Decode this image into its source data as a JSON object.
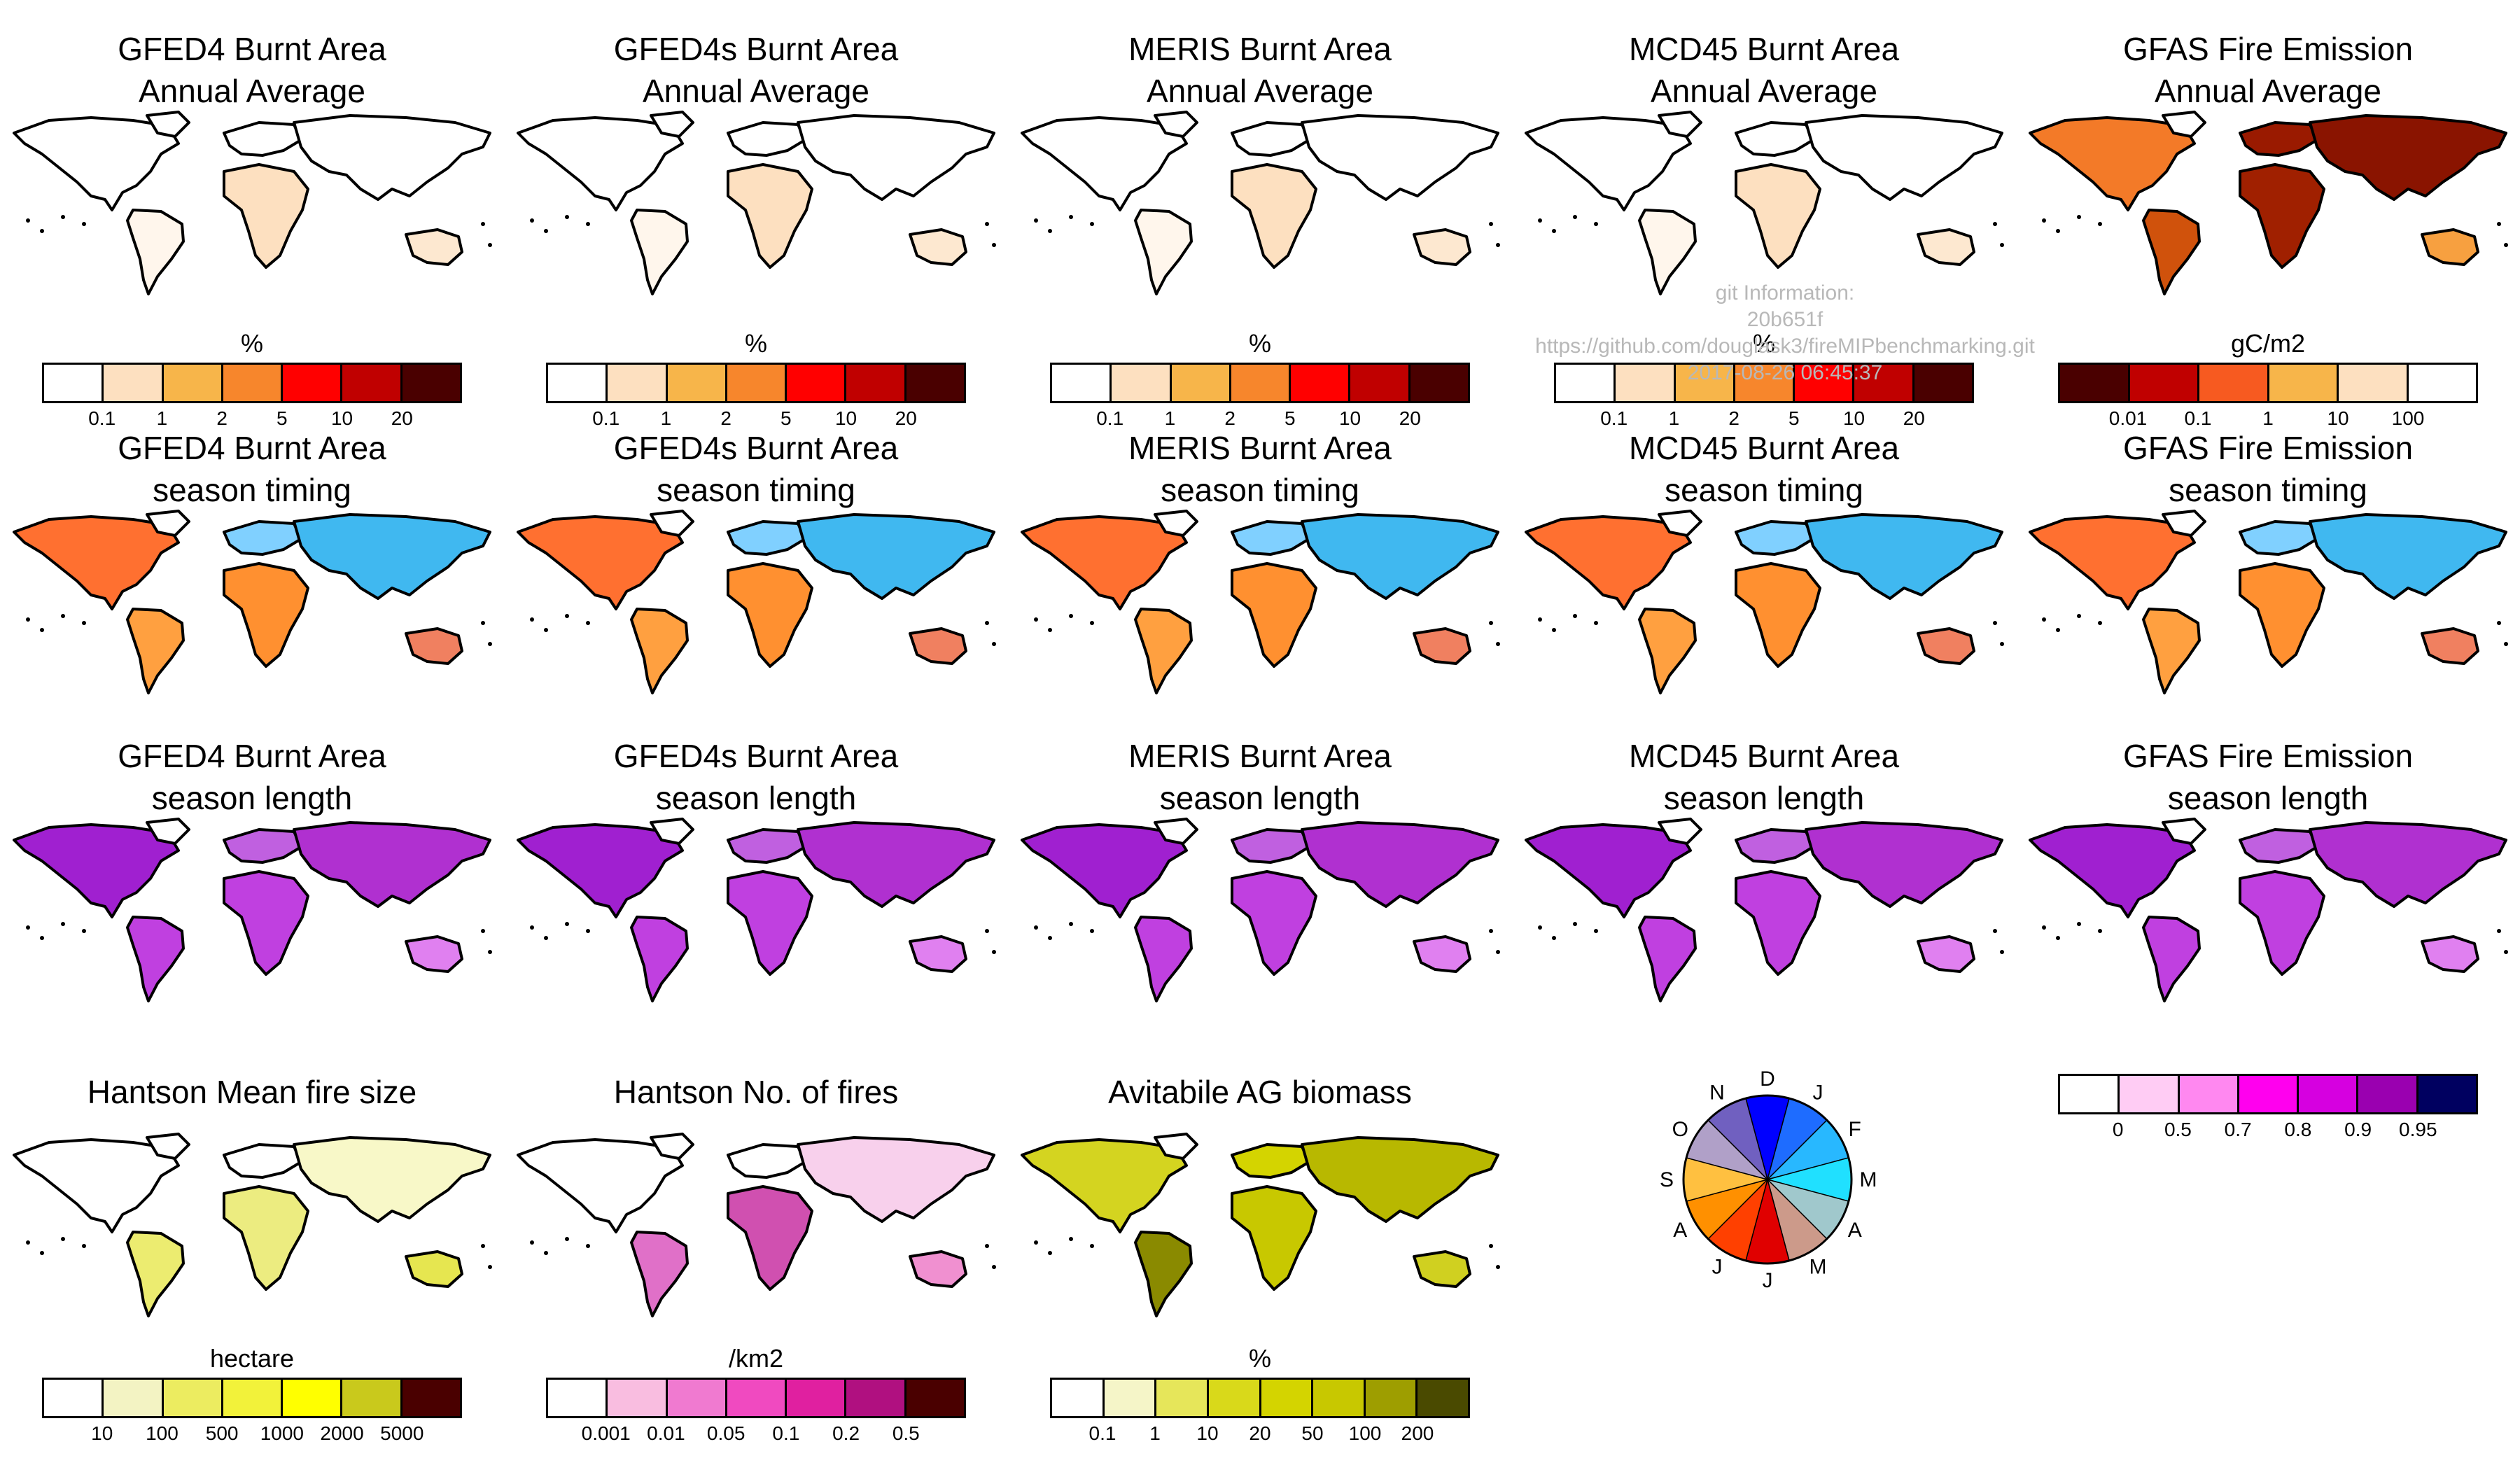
{
  "rows": [
    {
      "panels": [
        {
          "title_line1": "GFED4  Burnt Area",
          "title_line2": "Annual Average",
          "map": "land-light"
        },
        {
          "title_line1": "GFED4s Burnt Area",
          "title_line2": "Annual Average",
          "map": "land-light"
        },
        {
          "title_line1": "MERIS  Burnt Area",
          "title_line2": "Annual Average",
          "map": "land-light"
        },
        {
          "title_line1": "MCD45  Burnt Area",
          "title_line2": "Annual Average",
          "map": "land-light"
        },
        {
          "title_line1": "GFAS Fire Emission",
          "title_line2": "Annual Average",
          "map": "emission"
        }
      ],
      "colorbars": [
        {
          "title": "%",
          "colors": [
            "#ffffff",
            "#fde0c0",
            "#f7b54a",
            "#f7862c",
            "#ff0000",
            "#c00000",
            "#4a0000"
          ],
          "ticks": [
            "0.1",
            "1",
            "2",
            "5",
            "10",
            "20"
          ]
        },
        {
          "title": "%",
          "colors": [
            "#ffffff",
            "#fde0c0",
            "#f7b54a",
            "#f7862c",
            "#ff0000",
            "#c00000",
            "#4a0000"
          ],
          "ticks": [
            "0.1",
            "1",
            "2",
            "5",
            "10",
            "20"
          ]
        },
        {
          "title": "%",
          "colors": [
            "#ffffff",
            "#fde0c0",
            "#f7b54a",
            "#f7862c",
            "#ff0000",
            "#c00000",
            "#4a0000"
          ],
          "ticks": [
            "0.1",
            "1",
            "2",
            "5",
            "10",
            "20"
          ]
        },
        {
          "title": "%",
          "colors": [
            "#ffffff",
            "#fde0c0",
            "#f7b54a",
            "#f7862c",
            "#ff0000",
            "#c00000",
            "#4a0000"
          ],
          "ticks": [
            "0.1",
            "1",
            "2",
            "5",
            "10",
            "20"
          ]
        },
        {
          "title": "gC/m2",
          "colors": [
            "#4a0000",
            "#c00000",
            "#f75a20",
            "#f7b54a",
            "#fde0c0",
            "#ffffff"
          ],
          "ticks": [
            "0.01",
            "0.1",
            "1",
            "10",
            "100"
          ]
        }
      ]
    },
    {
      "panels": [
        {
          "title_line1": "GFED4  Burnt Area",
          "title_line2": "season timing",
          "map": "timing"
        },
        {
          "title_line1": "GFED4s Burnt Area",
          "title_line2": "season timing",
          "map": "timing"
        },
        {
          "title_line1": "MERIS  Burnt Area",
          "title_line2": "season timing",
          "map": "timing"
        },
        {
          "title_line1": "MCD45  Burnt Area",
          "title_line2": "season timing",
          "map": "timing"
        },
        {
          "title_line1": "GFAS Fire Emission",
          "title_line2": "season timing",
          "map": "timing"
        }
      ]
    },
    {
      "panels": [
        {
          "title_line1": "GFED4  Burnt Area",
          "title_line2": "season length",
          "map": "length"
        },
        {
          "title_line1": "GFED4s Burnt Area",
          "title_line2": "season length",
          "map": "length"
        },
        {
          "title_line1": "MERIS  Burnt Area",
          "title_line2": "season length",
          "map": "length"
        },
        {
          "title_line1": "MCD45  Burnt Area",
          "title_line2": "season length",
          "map": "length"
        },
        {
          "title_line1": "GFAS Fire Emission",
          "title_line2": "season length",
          "map": "length"
        }
      ]
    },
    {
      "panels": [
        {
          "title_line1": "Hantson Mean fire size",
          "title_line2": "",
          "map": "firesize"
        },
        {
          "title_line1": "Hantson No. of fires",
          "title_line2": "",
          "map": "nfires"
        },
        {
          "title_line1": "Avitabile AG biomass",
          "title_line2": "",
          "map": "biomass"
        }
      ],
      "colorbars": [
        {
          "title": "hectare",
          "colors": [
            "#ffffff",
            "#f3f3c3",
            "#ecec60",
            "#f2f23a",
            "#ffff00",
            "#c9c91c",
            "#4a0000"
          ],
          "ticks": [
            "10",
            "100",
            "500",
            "1000",
            "2000",
            "5000"
          ]
        },
        {
          "title": "/km2",
          "colors": [
            "#ffffff",
            "#f9bde0",
            "#f07ad0",
            "#f04ac0",
            "#e020a0",
            "#b01080",
            "#4a0000"
          ],
          "ticks": [
            "0.001",
            "0.01",
            "0.05",
            "0.1",
            "0.2",
            "0.5"
          ]
        },
        {
          "title": "%",
          "colors": [
            "#ffffff",
            "#f5f5c8",
            "#e6e65a",
            "#d9d91a",
            "#d4d400",
            "#c8c800",
            "#9e9e00",
            "#4a4a00"
          ],
          "ticks": [
            "0.1",
            "1",
            "10",
            "20",
            "50",
            "100",
            "200"
          ]
        }
      ]
    }
  ],
  "length_colorbar": {
    "title": "",
    "colors": [
      "#ffffff",
      "#ffccf4",
      "#ff88f0",
      "#ff00ee",
      "#d600e0",
      "#9a00b0",
      "#000060"
    ],
    "ticks": [
      "0",
      "0.5",
      "0.7",
      "0.8",
      "0.9",
      "0.95"
    ]
  },
  "month_wheel": {
    "labels": [
      "D",
      "J",
      "F",
      "M",
      "A",
      "M",
      "J",
      "J",
      "A",
      "S",
      "O",
      "N"
    ],
    "colors": [
      "#0000ff",
      "#1e6cff",
      "#28b8ff",
      "#20e0ff",
      "#a0c8cc",
      "#cc9a8a",
      "#e00000",
      "#ff4000",
      "#ff9000",
      "#ffc040",
      "#b0a0c8",
      "#7060c0"
    ]
  },
  "watermark": {
    "line1": "git Information:",
    "line2": "20b651f",
    "line3": "https://github.com/douglask3/fireMIPbenchmarking.git",
    "line4": "2017-08-26 06:45:37"
  }
}
